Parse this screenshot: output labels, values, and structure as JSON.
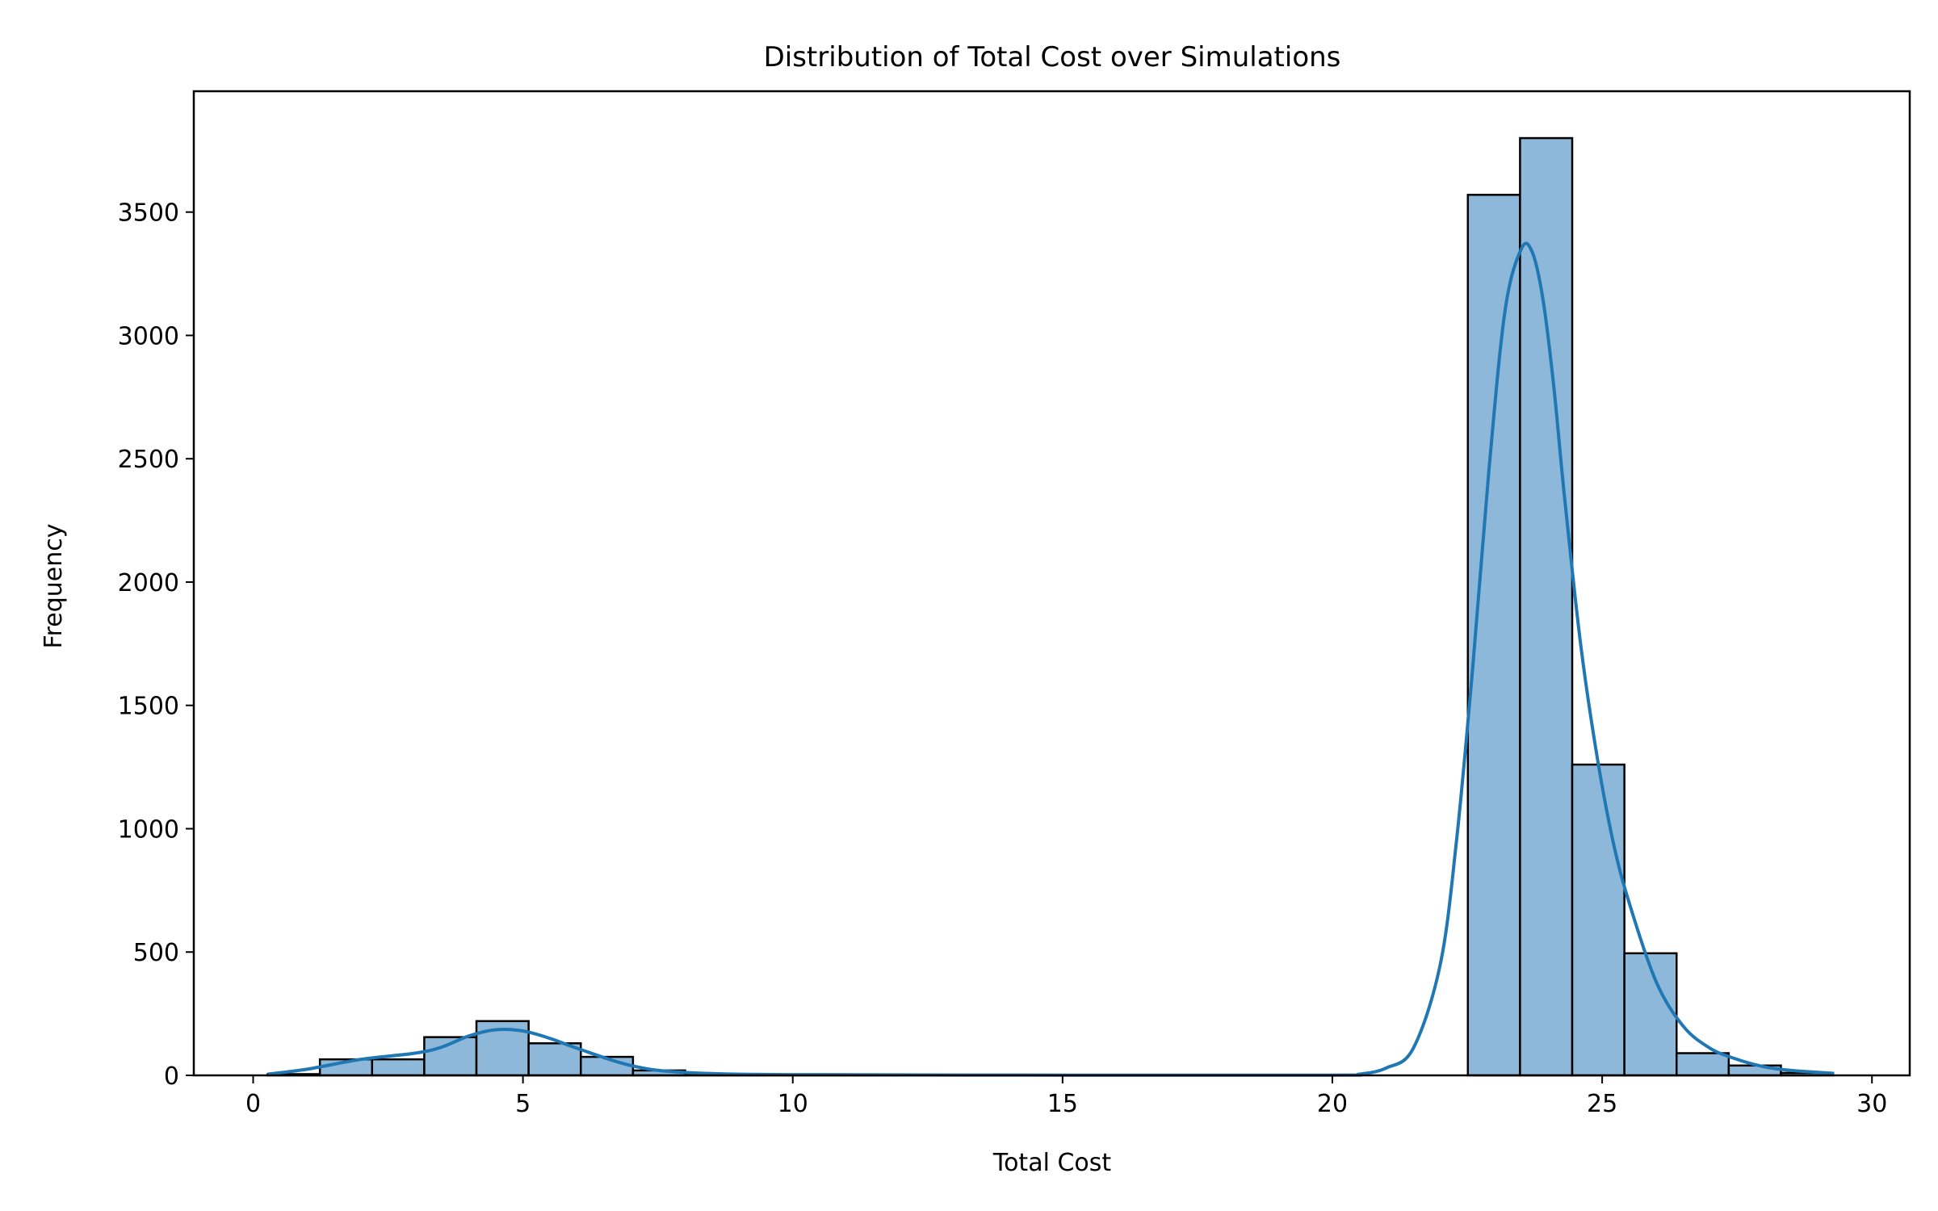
{
  "chart_data": {
    "type": "bar",
    "title": "Distribution of Total Cost over Simulations",
    "xlabel": "Total Cost",
    "ylabel": "Frequency",
    "xlim": [
      -1.1,
      30.7
    ],
    "ylim": [
      0,
      3990
    ],
    "xticks": [
      0,
      5,
      10,
      15,
      20,
      25,
      30
    ],
    "yticks": [
      0,
      500,
      1000,
      1500,
      2000,
      2500,
      3000,
      3500
    ],
    "grid": false,
    "bin_width": 0.967,
    "bins": [
      {
        "x0": 0.27,
        "count": 5
      },
      {
        "x0": 1.237,
        "count": 65
      },
      {
        "x0": 2.204,
        "count": 65
      },
      {
        "x0": 3.171,
        "count": 155
      },
      {
        "x0": 4.138,
        "count": 220
      },
      {
        "x0": 5.105,
        "count": 130
      },
      {
        "x0": 6.072,
        "count": 75
      },
      {
        "x0": 7.039,
        "count": 20
      },
      {
        "x0": 8.006,
        "count": 5
      },
      {
        "x0": 8.973,
        "count": 3
      },
      {
        "x0": 9.94,
        "count": 2
      },
      {
        "x0": 10.907,
        "count": 1
      },
      {
        "x0": 11.874,
        "count": 1
      },
      {
        "x0": 12.841,
        "count": 0
      },
      {
        "x0": 13.808,
        "count": 0
      },
      {
        "x0": 14.775,
        "count": 0
      },
      {
        "x0": 15.742,
        "count": 0
      },
      {
        "x0": 16.709,
        "count": 0
      },
      {
        "x0": 17.676,
        "count": 0
      },
      {
        "x0": 18.643,
        "count": 0
      },
      {
        "x0": 19.61,
        "count": 0
      },
      {
        "x0": 20.577,
        "count": 0
      },
      {
        "x0": 21.544,
        "count": 0
      },
      {
        "x0": 22.511,
        "count": 3570
      },
      {
        "x0": 23.478,
        "count": 3800
      },
      {
        "x0": 24.445,
        "count": 1260
      },
      {
        "x0": 25.412,
        "count": 495
      },
      {
        "x0": 26.379,
        "count": 90
      },
      {
        "x0": 27.346,
        "count": 40
      },
      {
        "x0": 28.313,
        "count": 10
      }
    ],
    "kde": {
      "x": [
        0.27,
        1.0,
        2.0,
        3.0,
        3.5,
        4.0,
        4.5,
        5.0,
        5.5,
        6.0,
        7.0,
        8.0,
        10.0,
        15.0,
        20.0,
        20.5,
        21.0,
        21.5,
        22.0,
        22.3,
        22.6,
        22.9,
        23.2,
        23.5,
        23.7,
        23.9,
        24.1,
        24.3,
        24.6,
        24.9,
        25.2,
        25.5,
        26.0,
        26.5,
        27.0,
        27.5,
        28.0,
        28.5,
        29.3
      ],
      "y": [
        5,
        25,
        65,
        90,
        115,
        160,
        185,
        180,
        150,
        110,
        40,
        12,
        3,
        1,
        1,
        5,
        30,
        110,
        450,
        950,
        1650,
        2450,
        3100,
        3350,
        3340,
        3150,
        2800,
        2350,
        1750,
        1300,
        950,
        700,
        380,
        200,
        110,
        65,
        35,
        20,
        8
      ]
    },
    "bar_color": "#8db8d9",
    "bar_edge_color": "#000000",
    "kde_color": "#1f77b4"
  }
}
